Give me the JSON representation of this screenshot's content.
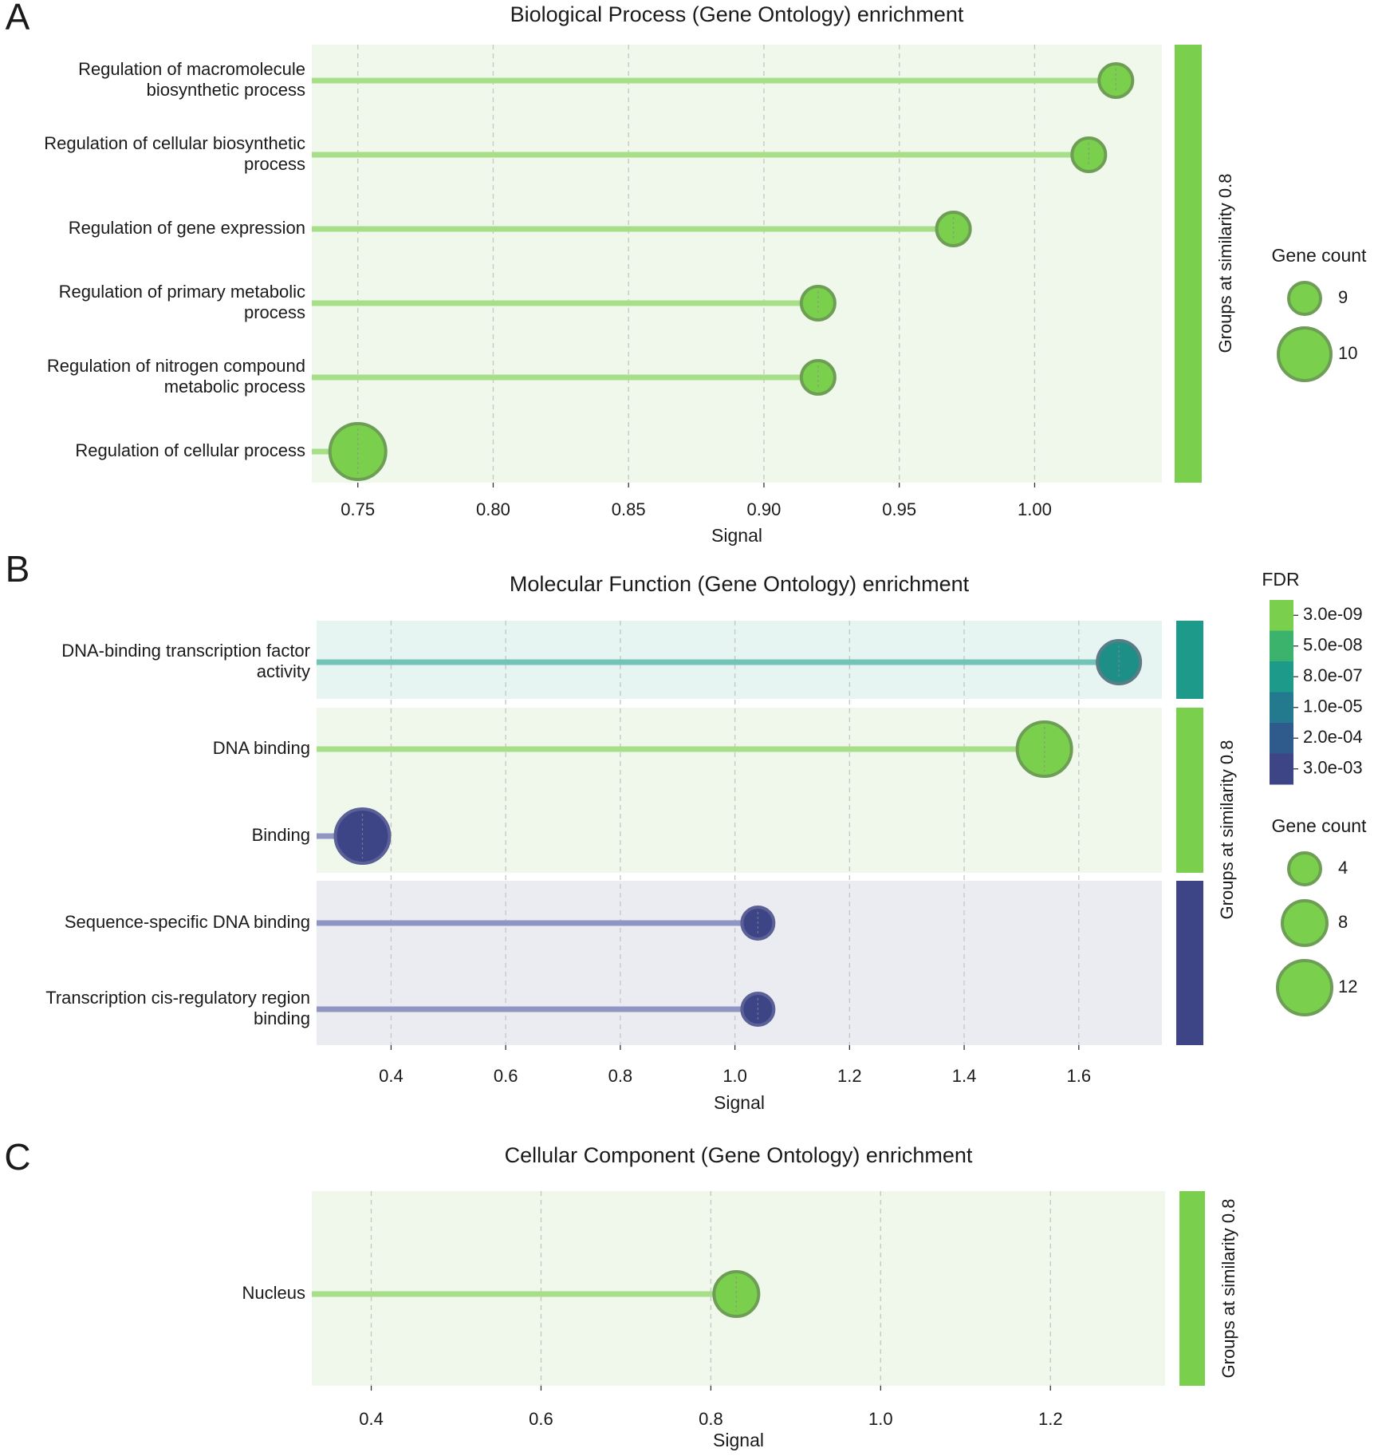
{
  "chart_data": [
    {
      "panel_label": "A",
      "type": "lollipop",
      "title": "Biological Process (Gene Ontology) enrichment",
      "xlabel": "Signal",
      "xlim": [
        0.733,
        1.047
      ],
      "xticks": [
        0.75,
        0.8,
        0.85,
        0.9,
        0.95,
        1.0
      ],
      "xtick_labels": [
        "0.75",
        "0.80",
        "0.85",
        "0.90",
        "0.95",
        "1.00"
      ],
      "group_label": "Groups at similarity 0.8",
      "groups": [
        {
          "color": "#7acf4d",
          "bg": "#eff8ea",
          "line": "#a6df87",
          "size": 6
        }
      ],
      "terms": [
        {
          "label": [
            "Regulation of macromolecule",
            "biosynthetic process"
          ],
          "signal": 1.03,
          "gene_count": 9,
          "color": "#7acf4d",
          "stroke": "#6e9e56",
          "line": "#a6df87"
        },
        {
          "label": [
            "Regulation of cellular biosynthetic",
            "process"
          ],
          "signal": 1.02,
          "gene_count": 9,
          "color": "#7acf4d",
          "stroke": "#6e9e56",
          "line": "#a6df87"
        },
        {
          "label": [
            "Regulation of gene expression"
          ],
          "signal": 0.97,
          "gene_count": 9,
          "color": "#7acf4d",
          "stroke": "#6e9e56",
          "line": "#a6df87"
        },
        {
          "label": [
            "Regulation of primary metabolic",
            "process"
          ],
          "signal": 0.92,
          "gene_count": 9,
          "color": "#7acf4d",
          "stroke": "#6e9e56",
          "line": "#a6df87"
        },
        {
          "label": [
            "Regulation of nitrogen compound",
            "metabolic process"
          ],
          "signal": 0.92,
          "gene_count": 9,
          "color": "#7acf4d",
          "stroke": "#6e9e56",
          "line": "#a6df87"
        },
        {
          "label": [
            "Regulation of cellular process"
          ],
          "signal": 0.75,
          "gene_count": 10,
          "color": "#7acf4d",
          "stroke": "#6e9e56",
          "line": "#a6df87"
        }
      ],
      "legend": {
        "gene_count_title": "Gene count",
        "gene_count": [
          9,
          10
        ],
        "gene_count_labels": [
          "9",
          "10"
        ]
      }
    },
    {
      "panel_label": "B",
      "type": "lollipop",
      "title": "Molecular Function (Gene Ontology) enrichment",
      "xlabel": "Signal",
      "xlim": [
        0.27,
        1.745
      ],
      "xticks": [
        0.4,
        0.6,
        0.8,
        1.0,
        1.2,
        1.4,
        1.6
      ],
      "xtick_labels": [
        "0.4",
        "0.6",
        "0.8",
        "1.0",
        "1.2",
        "1.4",
        "1.6"
      ],
      "group_label": "Groups at similarity 0.8",
      "groups": [
        {
          "color": "#1e9a8a",
          "bg": "#e6f4f2",
          "line": "#72c4b7",
          "size": 1
        },
        {
          "color": "#7acf4d",
          "bg": "#eff8ea",
          "line": "#a6df87",
          "size": 2
        },
        {
          "color": "#3d4587",
          "bg": "#ebecf2",
          "line": "#8f96c4",
          "size": 2
        }
      ],
      "terms": [
        {
          "label": [
            "DNA-binding transcription factor",
            "activity"
          ],
          "signal": 1.67,
          "gene_count": 8,
          "color": "#1e8f87",
          "stroke": "#5a7c86",
          "line": "#72c4b7"
        },
        {
          "label": [
            "DNA binding"
          ],
          "signal": 1.54,
          "gene_count": 12,
          "color": "#7acf4d",
          "stroke": "#6e9e56",
          "line": "#a6df87"
        },
        {
          "label": [
            "Binding"
          ],
          "signal": 0.35,
          "gene_count": 12,
          "color": "#3d4587",
          "stroke": "#5b6096",
          "line": "#8f96c4"
        },
        {
          "label": [
            "Sequence-specific DNA binding"
          ],
          "signal": 1.04,
          "gene_count": 4,
          "color": "#3d4587",
          "stroke": "#5b6096",
          "line": "#8f96c4"
        },
        {
          "label": [
            "Transcription cis-regulatory region",
            "binding"
          ],
          "signal": 1.04,
          "gene_count": 4,
          "color": "#3d4587",
          "stroke": "#5b6096",
          "line": "#8f96c4"
        }
      ],
      "legend": {
        "fdr_title": "FDR",
        "fdr_labels": [
          "3.0e-09",
          "5.0e-08",
          "8.0e-07",
          "1.0e-05",
          "2.0e-04",
          "3.0e-03"
        ],
        "fdr_colors": [
          "#7acf4d",
          "#3bb36d",
          "#1e9a8a",
          "#23798e",
          "#2e5b8c",
          "#3d4587"
        ],
        "gene_count_title": "Gene count",
        "gene_count": [
          4,
          8,
          12
        ],
        "gene_count_labels": [
          "4",
          "8",
          "12"
        ]
      }
    },
    {
      "panel_label": "C",
      "type": "lollipop",
      "title": "Cellular Component (Gene Ontology) enrichment",
      "xlabel": "Signal",
      "xlim": [
        0.33,
        1.335
      ],
      "xticks": [
        0.4,
        0.6,
        0.8,
        1.0,
        1.2
      ],
      "xtick_labels": [
        "0.4",
        "0.6",
        "0.8",
        "1.0",
        "1.2"
      ],
      "group_label": "Groups at similarity 0.8",
      "groups": [
        {
          "color": "#7acf4d",
          "bg": "#eff8ea",
          "line": "#a6df87",
          "size": 1
        }
      ],
      "terms": [
        {
          "label": [
            "Nucleus"
          ],
          "signal": 0.83,
          "gene_count": 12,
          "color": "#7acf4d",
          "stroke": "#6e9e56",
          "line": "#a6df87"
        }
      ],
      "legend": {}
    }
  ]
}
